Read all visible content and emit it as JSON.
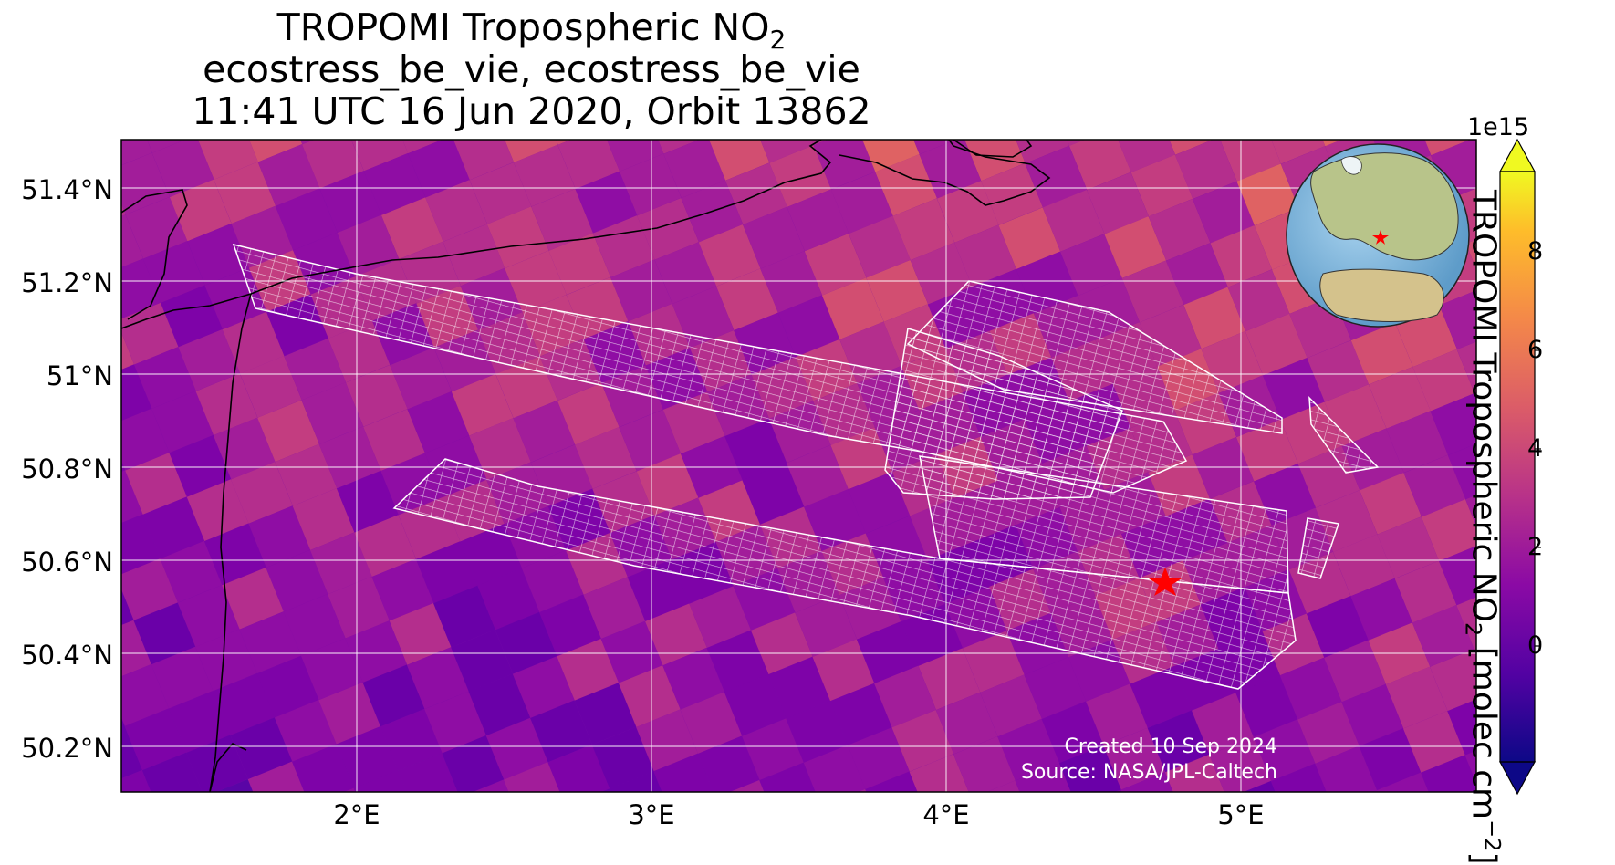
{
  "title": {
    "line1_main": "TROPOMI Tropospheric NO",
    "line1_sub": "2",
    "line2": "ecostress_be_vie, ecostress_be_vie",
    "line3": "11:41 UTC 16 Jun 2020, Orbit 13862"
  },
  "map": {
    "lat_labels": [
      "51.4°N",
      "51.2°N",
      "51°N",
      "50.8°N",
      "50.6°N",
      "50.4°N",
      "50.2°N"
    ],
    "lon_labels": [
      "2°E",
      "3°E",
      "4°E",
      "5°E"
    ],
    "extent": {
      "lon": [
        1.2,
        5.8
      ],
      "lat": [
        50.1,
        51.5
      ]
    },
    "gridlines": true,
    "target_marker": {
      "lon": 4.75,
      "lat": 50.55,
      "color": "#ff0000"
    }
  },
  "credit": {
    "created": "Created 10 Sep 2024",
    "source": "Source: NASA/JPL-Caltech"
  },
  "colorbar": {
    "exponent": "1e15",
    "ticks": [
      "8",
      "6",
      "4",
      "2",
      "0"
    ],
    "range": [
      -2,
      10
    ],
    "extend": "both",
    "colormap": "plasma",
    "label_main": "TROPOMI Tropospheric NO",
    "label_sub": "2",
    "label_units": " [molec cm",
    "label_units_sup": "−2",
    "label_end": "]"
  },
  "inset_globe": {
    "description_marker": "red star over western Europe"
  }
}
